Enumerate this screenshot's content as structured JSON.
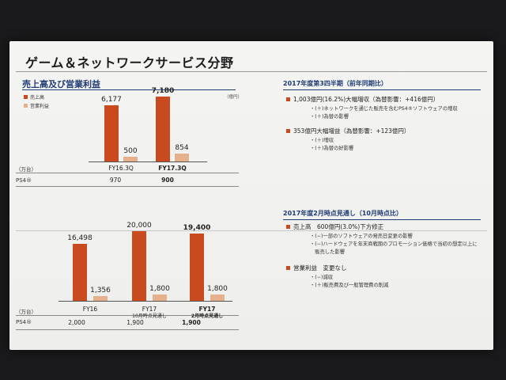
{
  "title": "ゲーム＆ネットワークサービス分野",
  "left_section_title": "売上高及び営業利益",
  "legend": [
    {
      "label": "売上高",
      "color": "#c94a1e"
    },
    {
      "label": "営業利益",
      "color": "#e7b08c"
    }
  ],
  "unit_label": "（億円）",
  "colors": {
    "sales": "#c94a1e",
    "profit": "#e7b08c",
    "heading": "#1f3b73"
  },
  "chart_data": [
    {
      "type": "bar",
      "categories": [
        "FY16.3Q",
        "FY17.3Q"
      ],
      "series": [
        {
          "name": "売上高",
          "values": [
            6177,
            7180
          ]
        },
        {
          "name": "営業利益",
          "values": [
            500,
            854
          ]
        }
      ],
      "value_labels": {
        "sales": [
          "6,177",
          "7,180"
        ],
        "profit": [
          "500",
          "854"
        ]
      },
      "ylim": [
        0,
        7500
      ]
    },
    {
      "type": "bar",
      "categories": [
        "FY16",
        "FY17\n10月時点見通し",
        "FY17\n2月時点見通し"
      ],
      "category_labels": [
        {
          "line1": "FY16",
          "line2": ""
        },
        {
          "line1": "FY17",
          "line2": "10月時点見通し"
        },
        {
          "line1": "FY17",
          "line2": "2月時点見通し"
        }
      ],
      "series": [
        {
          "name": "売上高",
          "values": [
            16498,
            20000,
            19400
          ]
        },
        {
          "name": "営業利益",
          "values": [
            1356,
            1800,
            1800
          ]
        }
      ],
      "value_labels": {
        "sales": [
          "16,498",
          "20,000",
          "19,400"
        ],
        "profit": [
          "1,356",
          "1,800",
          "1,800"
        ]
      },
      "ylim": [
        0,
        21000
      ]
    }
  ],
  "table_top": {
    "unit": "（万台）",
    "row_label": "PS4®",
    "values": [
      "970",
      "900"
    ]
  },
  "table_bottom": {
    "unit": "（万台）",
    "row_label": "PS4®",
    "values": [
      "2,000",
      "1,900",
      "1,900"
    ]
  },
  "right_top": {
    "heading": "2017年度第3四半期（前年同期比）",
    "items": [
      {
        "text": "1,003億円(16.2%)大幅増収（為替影響：+416億円）",
        "subs": [
          "・(＋)ネットワークを通じた販売を含むPS4®ソフトウェアの増収",
          "・(＋)為替の影響"
        ]
      },
      {
        "text": "353億円大幅増益（為替影響：+123億円）",
        "subs": [
          "・(＋)増収",
          "・(＋)為替の好影響"
        ]
      }
    ]
  },
  "right_bottom": {
    "heading": "2017年度2月時点見通し（10月時点比）",
    "items": [
      {
        "text": "売上高　600億円(3.0%)下方修正",
        "subs": [
          "・(−)一部のソフトウェアの発売日変更の影響",
          "・(−)ハードウェアを年末商戦期のプロモーション価格で当初の想定以上に",
          "　販売した影響"
        ]
      },
      {
        "text": "営業利益　変更なし",
        "subs": [
          "・(−)減収",
          "・(＋)販売費及び一般管理費の削減"
        ]
      }
    ]
  }
}
